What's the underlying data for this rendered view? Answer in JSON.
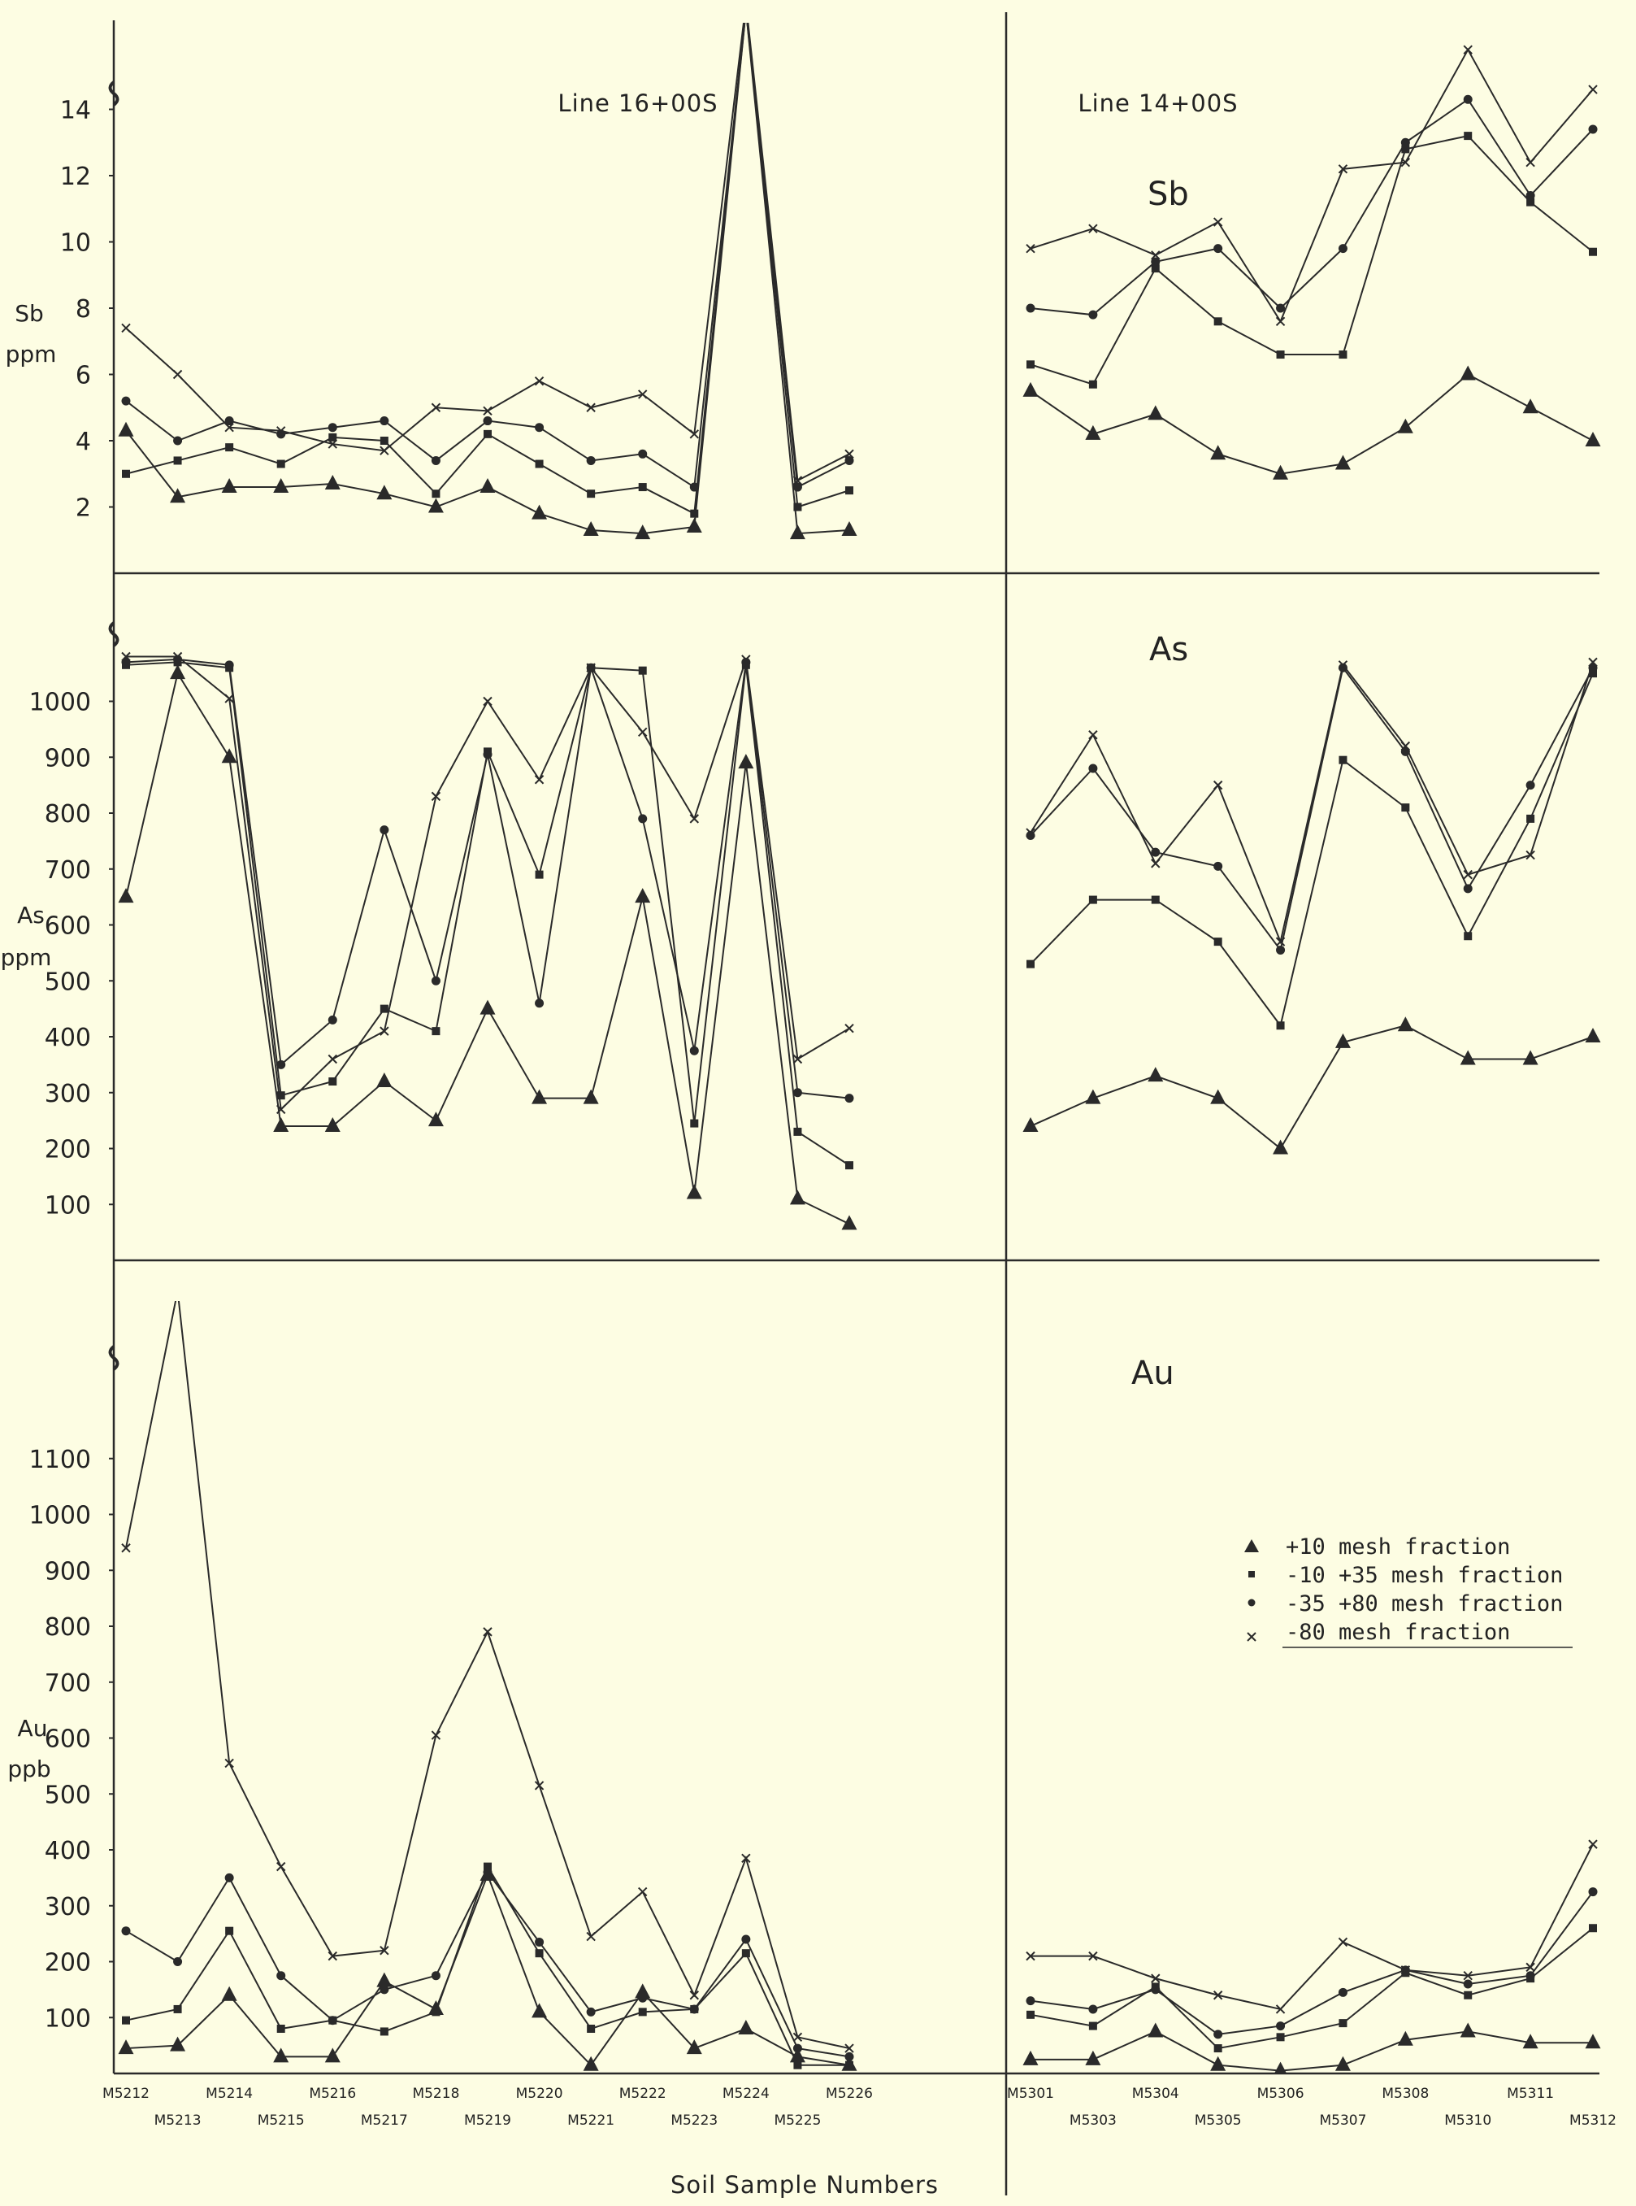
{
  "chart_data": {
    "type": "line",
    "xlabel": "Soil Sample Numbers",
    "lines": [
      {
        "label": "Line 16+00S",
        "samples": [
          "M5212",
          "M5213",
          "M5214",
          "M5215",
          "M5216",
          "M5217",
          "M5218",
          "M5219",
          "M5220",
          "M5221",
          "M5222",
          "M5223",
          "M5224",
          "M5225",
          "M5226"
        ]
      },
      {
        "label": "Line 14+00S",
        "samples": [
          "M5301",
          "M5303",
          "M5304",
          "M5305",
          "M5306",
          "M5307",
          "M5308",
          "M5310",
          "M5311",
          "M5312"
        ]
      }
    ],
    "legend": {
      "placement": "right",
      "entries": [
        {
          "marker": "triangle",
          "label": "+10 mesh fraction"
        },
        {
          "marker": "square",
          "label": "-10 +35 mesh fraction"
        },
        {
          "marker": "dot",
          "label": "-35 +80 mesh fraction"
        },
        {
          "marker": "x",
          "label": "-80 mesh fraction"
        }
      ]
    },
    "panels": [
      {
        "element": "Sb",
        "ylabel": [
          "Sb",
          "ppm"
        ],
        "ylim": [
          0,
          16
        ],
        "yticks": [
          2,
          4,
          6,
          8,
          10,
          12,
          14
        ],
        "axis_break": true,
        "line16": {
          "triangle": [
            4.3,
            2.3,
            2.6,
            2.6,
            2.7,
            2.4,
            2.0,
            2.6,
            1.8,
            1.3,
            1.2,
            1.4,
            17.0,
            1.2,
            1.3
          ],
          "square": [
            3.0,
            3.4,
            3.8,
            3.3,
            4.1,
            4.0,
            2.4,
            4.2,
            3.3,
            2.4,
            2.6,
            1.8,
            17.0,
            2.0,
            2.5
          ],
          "dot": [
            5.2,
            4.0,
            4.6,
            4.2,
            4.4,
            4.6,
            3.4,
            4.6,
            4.4,
            3.4,
            3.6,
            2.6,
            17.0,
            2.6,
            3.4
          ],
          "x": [
            7.4,
            6.0,
            4.4,
            4.3,
            3.9,
            3.7,
            5.0,
            4.9,
            5.8,
            5.0,
            5.4,
            4.2,
            17.2,
            2.8,
            3.6
          ]
        },
        "line14": {
          "triangle": [
            5.5,
            4.2,
            4.8,
            3.6,
            3.0,
            3.3,
            4.4,
            6.0,
            5.0,
            4.0
          ],
          "square": [
            6.3,
            5.7,
            9.2,
            7.6,
            6.6,
            6.6,
            12.8,
            13.2,
            11.2,
            9.7
          ],
          "dot": [
            8.0,
            7.8,
            9.4,
            9.8,
            8.0,
            9.8,
            13.0,
            14.3,
            11.4,
            13.4
          ],
          "x": [
            9.8,
            10.4,
            9.6,
            10.6,
            7.6,
            12.2,
            12.4,
            15.8,
            12.4,
            14.6
          ]
        }
      },
      {
        "element": "As",
        "ylabel": [
          "As",
          "ppm"
        ],
        "ylim": [
          0,
          1100
        ],
        "yticks": [
          100,
          200,
          300,
          400,
          500,
          600,
          700,
          800,
          900,
          1000
        ],
        "axis_break": true,
        "line16": {
          "triangle": [
            650,
            1050,
            900,
            240,
            240,
            320,
            250,
            450,
            290,
            290,
            650,
            120,
            890,
            110,
            65
          ],
          "square": [
            1065,
            1070,
            1060,
            295,
            320,
            450,
            410,
            910,
            690,
            1060,
            1055,
            245,
            1065,
            230,
            170
          ],
          "dot": [
            1070,
            1075,
            1065,
            350,
            430,
            770,
            500,
            905,
            460,
            1060,
            790,
            375,
            1070,
            300,
            290
          ],
          "x": [
            1080,
            1080,
            1005,
            270,
            360,
            410,
            830,
            1000,
            860,
            1060,
            945,
            790,
            1075,
            360,
            415
          ]
        },
        "line14": {
          "triangle": [
            240,
            290,
            330,
            290,
            200,
            390,
            420,
            360,
            360,
            400
          ],
          "square": [
            530,
            645,
            645,
            570,
            420,
            895,
            810,
            580,
            790,
            1050
          ],
          "dot": [
            760,
            880,
            730,
            705,
            555,
            1060,
            910,
            665,
            850,
            1060
          ],
          "x": [
            765,
            940,
            710,
            850,
            570,
            1065,
            920,
            690,
            725,
            1070
          ]
        }
      },
      {
        "element": "Au",
        "ylabel": [
          "Au",
          "ppb"
        ],
        "ylim": [
          0,
          1220
        ],
        "yticks": [
          100,
          200,
          300,
          400,
          500,
          600,
          700,
          800,
          900,
          1000,
          1100
        ],
        "axis_break": true,
        "line16": {
          "triangle": [
            45,
            50,
            140,
            30,
            30,
            165,
            115,
            355,
            110,
            15,
            145,
            45,
            80,
            30,
            15
          ],
          "square": [
            95,
            115,
            255,
            80,
            95,
            75,
            110,
            370,
            215,
            80,
            110,
            115,
            215,
            15,
            15
          ],
          "dot": [
            255,
            200,
            350,
            175,
            95,
            150,
            175,
            360,
            235,
            110,
            135,
            115,
            240,
            45,
            30
          ],
          "x": [
            940,
            1400,
            555,
            370,
            210,
            220,
            605,
            790,
            515,
            245,
            325,
            140,
            385,
            65,
            45
          ]
        },
        "line14": {
          "triangle": [
            25,
            25,
            75,
            15,
            5,
            15,
            60,
            75,
            55,
            55
          ],
          "square": [
            105,
            85,
            155,
            45,
            65,
            90,
            180,
            140,
            170,
            260
          ],
          "dot": [
            130,
            115,
            150,
            70,
            85,
            145,
            185,
            160,
            175,
            325
          ],
          "x": [
            210,
            210,
            170,
            140,
            115,
            235,
            185,
            175,
            190,
            410
          ]
        }
      }
    ]
  }
}
